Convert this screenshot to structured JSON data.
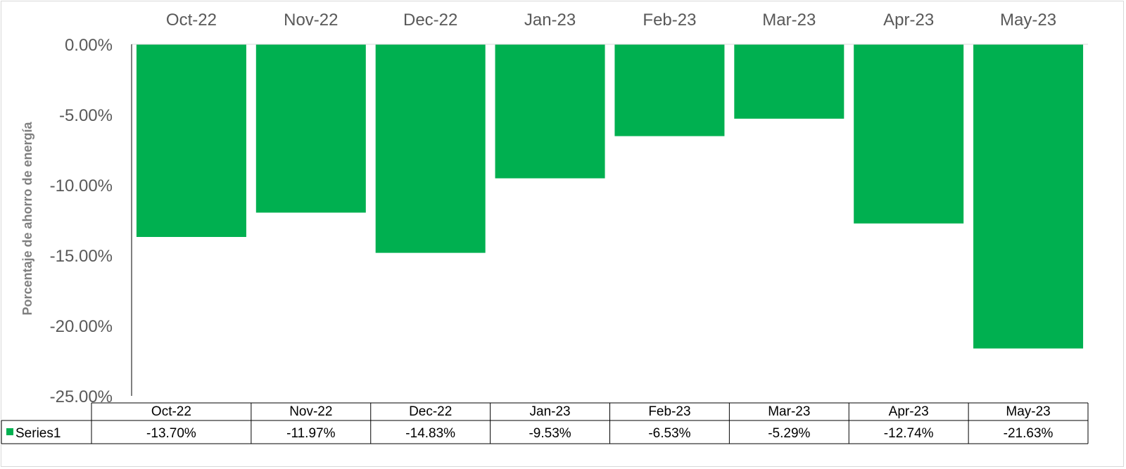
{
  "chart_data": {
    "type": "bar",
    "ylabel": "Porcentaje de ahorro de energía",
    "categories": [
      "Oct-22",
      "Nov-22",
      "Dec-22",
      "Jan-23",
      "Feb-23",
      "Mar-23",
      "Apr-23",
      "May-23"
    ],
    "series": [
      {
        "name": "Series1",
        "values": [
          -13.7,
          -11.97,
          -14.83,
          -9.53,
          -6.53,
          -5.29,
          -12.74,
          -21.63
        ]
      }
    ],
    "value_labels": [
      "-13.70%",
      "-11.97%",
      "-14.83%",
      "-9.53%",
      "-6.53%",
      "-5.29%",
      "-12.74%",
      "-21.63%"
    ],
    "yticks": [
      0,
      -5,
      -10,
      -15,
      -20,
      -25
    ],
    "ytick_labels": [
      "0.00%",
      "-5.00%",
      "-10.00%",
      "-15.00%",
      "-20.00%",
      "-25.00%"
    ],
    "ylim": [
      -25,
      0
    ],
    "category_axis_position": "top",
    "data_table": true,
    "grid": false,
    "bar_color": "#00b050"
  }
}
